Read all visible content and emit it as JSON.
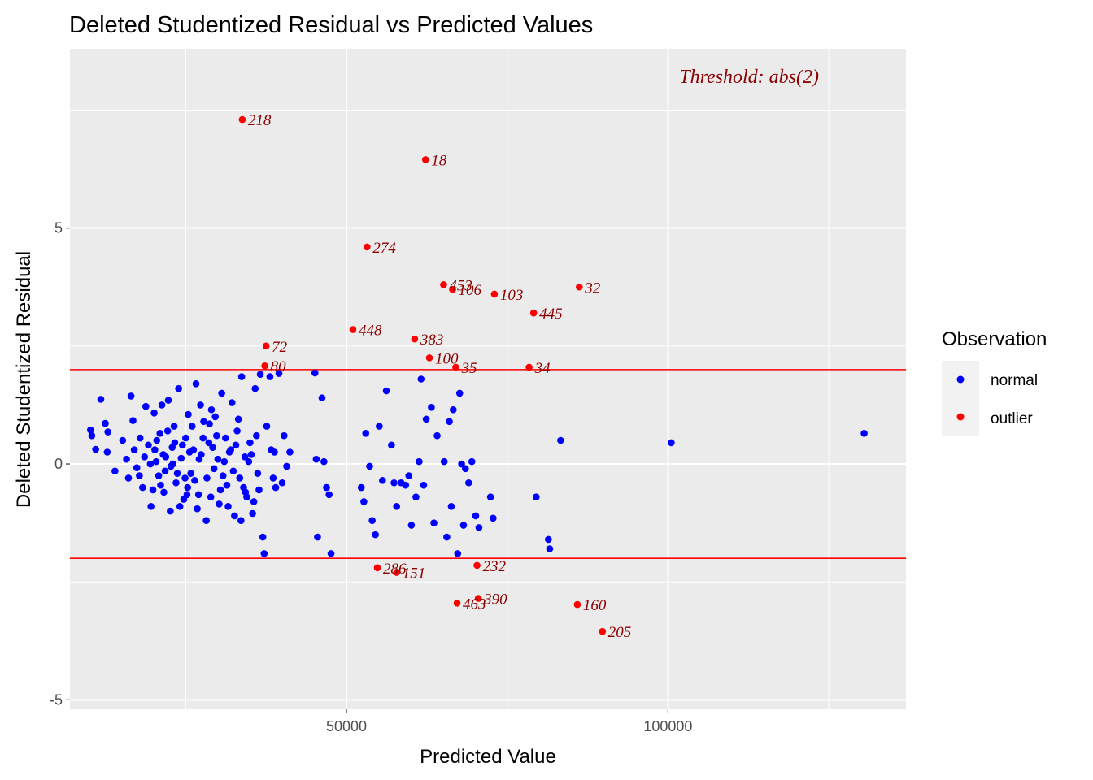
{
  "chart_data": {
    "type": "scatter",
    "title": "Deleted Studentized Residual vs Predicted Values",
    "xlabel": "Predicted Value",
    "ylabel": "Deleted Studentized Residual",
    "xlim": [
      7000,
      137000
    ],
    "ylim": [
      -5.2,
      8.8
    ],
    "x_ticks": [
      50000,
      100000
    ],
    "x_tick_labels": [
      "50000",
      "100000"
    ],
    "x_minor": [
      25000,
      75000,
      125000
    ],
    "y_ticks": [
      -5,
      0,
      5
    ],
    "y_tick_labels": [
      "-5",
      "0",
      "5"
    ],
    "y_minor": [
      -2.5,
      2.5,
      7.5
    ],
    "thresholds": [
      2,
      -2
    ],
    "annotation": "Threshold: abs(2)",
    "grid": true,
    "legend_position": "right",
    "legend": {
      "title": "Observation",
      "items": [
        {
          "label": "normal",
          "color": "#0000ff"
        },
        {
          "label": "outlier",
          "color": "#ff0000"
        }
      ]
    },
    "colors": {
      "normal": "#0000ff",
      "outlier": "#ff0000",
      "threshold": "#ff0000",
      "label": "#8b0000",
      "panel": "#ebebeb",
      "grid": "#ffffff"
    },
    "outliers": [
      {
        "x": 33800,
        "y": 7.3,
        "label": "218"
      },
      {
        "x": 62300,
        "y": 6.45,
        "label": "18"
      },
      {
        "x": 53200,
        "y": 4.6,
        "label": "274"
      },
      {
        "x": 65100,
        "y": 3.8,
        "label": "453"
      },
      {
        "x": 66500,
        "y": 3.7,
        "label": "106"
      },
      {
        "x": 73000,
        "y": 3.6,
        "label": "103"
      },
      {
        "x": 86200,
        "y": 3.75,
        "label": "32"
      },
      {
        "x": 79100,
        "y": 3.2,
        "label": "445"
      },
      {
        "x": 51000,
        "y": 2.85,
        "label": "448"
      },
      {
        "x": 60600,
        "y": 2.65,
        "label": "383"
      },
      {
        "x": 37500,
        "y": 2.5,
        "label": "72"
      },
      {
        "x": 62900,
        "y": 2.25,
        "label": "100"
      },
      {
        "x": 67000,
        "y": 2.05,
        "label": "35"
      },
      {
        "x": 78400,
        "y": 2.05,
        "label": "34"
      },
      {
        "x": 37300,
        "y": 2.08,
        "label": "80"
      },
      {
        "x": 54800,
        "y": -2.2,
        "label": "286"
      },
      {
        "x": 57800,
        "y": -2.3,
        "label": "151"
      },
      {
        "x": 70300,
        "y": -2.15,
        "label": "232"
      },
      {
        "x": 70500,
        "y": -2.85,
        "label": "390"
      },
      {
        "x": 67200,
        "y": -2.95,
        "label": "463"
      },
      {
        "x": 85900,
        "y": -2.98,
        "label": "160"
      },
      {
        "x": 89800,
        "y": -3.55,
        "label": "205"
      }
    ],
    "normal_points": [
      [
        10200,
        0.72
      ],
      [
        10400,
        0.6
      ],
      [
        11000,
        0.31
      ],
      [
        11800,
        1.37
      ],
      [
        12500,
        0.86
      ],
      [
        12800,
        0.25
      ],
      [
        12900,
        0.68
      ],
      [
        14000,
        -0.15
      ],
      [
        15200,
        0.5
      ],
      [
        15800,
        0.1
      ],
      [
        16100,
        -0.3
      ],
      [
        16500,
        1.44
      ],
      [
        16800,
        0.92
      ],
      [
        17000,
        0.3
      ],
      [
        17400,
        -0.08
      ],
      [
        17900,
        0.55
      ],
      [
        18300,
        -0.5
      ],
      [
        18800,
        1.22
      ],
      [
        19200,
        0.4
      ],
      [
        19600,
        -0.9
      ],
      [
        20100,
        1.08
      ],
      [
        20400,
        0.05
      ],
      [
        20800,
        -0.25
      ],
      [
        21000,
        0.65
      ],
      [
        21300,
        1.25
      ],
      [
        21600,
        -0.6
      ],
      [
        21900,
        0.15
      ],
      [
        22300,
        1.35
      ],
      [
        22600,
        -1.0
      ],
      [
        22900,
        0.35
      ],
      [
        23200,
        0.8
      ],
      [
        23500,
        -0.4
      ],
      [
        23900,
        1.6
      ],
      [
        24300,
        0.12
      ],
      [
        24700,
        -0.75
      ],
      [
        25000,
        0.55
      ],
      [
        25400,
        1.05
      ],
      [
        25800,
        -0.2
      ],
      [
        26200,
        0.3
      ],
      [
        26600,
        1.7
      ],
      [
        27000,
        -0.65
      ],
      [
        27400,
        0.2
      ],
      [
        27800,
        0.9
      ],
      [
        28200,
        -1.2
      ],
      [
        28600,
        0.45
      ],
      [
        29000,
        1.15
      ],
      [
        29400,
        -0.1
      ],
      [
        29800,
        0.6
      ],
      [
        30200,
        -0.85
      ],
      [
        30600,
        1.5
      ],
      [
        31000,
        0.05
      ],
      [
        31400,
        -0.45
      ],
      [
        31800,
        0.25
      ],
      [
        32200,
        1.3
      ],
      [
        32600,
        -1.1
      ],
      [
        33000,
        0.7
      ],
      [
        33400,
        -0.3
      ],
      [
        33700,
        1.85
      ],
      [
        34200,
        0.15
      ],
      [
        34500,
        -0.7
      ],
      [
        35000,
        0.45
      ],
      [
        35400,
        -1.05
      ],
      [
        35800,
        1.6
      ],
      [
        36200,
        -0.2
      ],
      [
        36600,
        1.9
      ],
      [
        37000,
        -1.55
      ],
      [
        37200,
        -1.9
      ],
      [
        38100,
        1.85
      ],
      [
        38300,
        0.3
      ],
      [
        38600,
        -0.3
      ],
      [
        39000,
        -0.5
      ],
      [
        39500,
        1.92
      ],
      [
        40000,
        -0.4
      ],
      [
        40300,
        0.6
      ],
      [
        40700,
        -0.05
      ],
      [
        41200,
        0.25
      ],
      [
        45100,
        1.93
      ],
      [
        45300,
        0.1
      ],
      [
        45500,
        -1.55
      ],
      [
        46200,
        1.4
      ],
      [
        46500,
        0.05
      ],
      [
        46900,
        -0.5
      ],
      [
        47300,
        -0.65
      ],
      [
        47600,
        -1.9
      ],
      [
        52300,
        -0.5
      ],
      [
        52700,
        -0.8
      ],
      [
        53000,
        0.65
      ],
      [
        53600,
        -0.05
      ],
      [
        54000,
        -1.2
      ],
      [
        54500,
        -1.5
      ],
      [
        55100,
        0.8
      ],
      [
        55600,
        -0.35
      ],
      [
        56200,
        1.55
      ],
      [
        57000,
        0.4
      ],
      [
        57400,
        -0.4
      ],
      [
        57800,
        -0.9
      ],
      [
        58500,
        -0.4
      ],
      [
        59200,
        -0.45
      ],
      [
        59700,
        -0.25
      ],
      [
        60100,
        -1.3
      ],
      [
        60800,
        -0.7
      ],
      [
        61300,
        0.05
      ],
      [
        61600,
        1.8
      ],
      [
        62000,
        -0.45
      ],
      [
        62400,
        0.95
      ],
      [
        63200,
        1.2
      ],
      [
        63600,
        -1.25
      ],
      [
        64100,
        0.6
      ],
      [
        65200,
        0.05
      ],
      [
        65600,
        -1.55
      ],
      [
        66000,
        0.9
      ],
      [
        66300,
        -0.9
      ],
      [
        66600,
        1.15
      ],
      [
        67300,
        -1.9
      ],
      [
        67600,
        1.5
      ],
      [
        67900,
        0.0
      ],
      [
        68200,
        -1.3
      ],
      [
        68500,
        -0.1
      ],
      [
        69000,
        -0.4
      ],
      [
        69500,
        0.05
      ],
      [
        70100,
        -1.1
      ],
      [
        70600,
        -1.35
      ],
      [
        72400,
        -0.7
      ],
      [
        72800,
        -1.15
      ],
      [
        79500,
        -0.7
      ],
      [
        81400,
        -1.6
      ],
      [
        81600,
        -1.8
      ],
      [
        83300,
        0.5
      ],
      [
        100500,
        0.45
      ],
      [
        130500,
        0.65
      ],
      [
        20500,
        0.5
      ],
      [
        21500,
        0.2
      ],
      [
        22200,
        0.7
      ],
      [
        23000,
        0.0
      ],
      [
        23700,
        -0.2
      ],
      [
        24500,
        0.4
      ],
      [
        25300,
        -0.5
      ],
      [
        26000,
        0.8
      ],
      [
        27100,
        0.1
      ],
      [
        28300,
        -0.3
      ],
      [
        29200,
        0.35
      ],
      [
        30400,
        -0.55
      ],
      [
        31200,
        0.55
      ],
      [
        32400,
        -0.15
      ],
      [
        33200,
        0.95
      ],
      [
        34300,
        -0.6
      ],
      [
        35200,
        0.2
      ],
      [
        19500,
        0.0
      ],
      [
        18600,
        0.15
      ],
      [
        17800,
        -0.25
      ],
      [
        26800,
        -0.95
      ],
      [
        27700,
        0.55
      ],
      [
        28900,
        -0.7
      ],
      [
        30000,
        0.1
      ],
      [
        31600,
        -0.9
      ],
      [
        32800,
        0.4
      ],
      [
        34000,
        -0.5
      ],
      [
        35600,
        -0.8
      ],
      [
        24100,
        -0.9
      ],
      [
        25600,
        0.25
      ],
      [
        29600,
        1.0
      ],
      [
        33600,
        -1.2
      ],
      [
        36000,
        0.6
      ],
      [
        21100,
        -0.45
      ],
      [
        22700,
        -0.05
      ],
      [
        23300,
        0.45
      ],
      [
        24900,
        -0.3
      ],
      [
        26400,
        -0.35
      ],
      [
        27300,
        1.25
      ],
      [
        28700,
        0.85
      ],
      [
        30800,
        -0.25
      ],
      [
        32000,
        0.3
      ],
      [
        34800,
        0.05
      ],
      [
        36400,
        -0.55
      ],
      [
        37600,
        0.8
      ],
      [
        38800,
        0.25
      ],
      [
        19900,
        -0.55
      ],
      [
        20200,
        0.3
      ],
      [
        21800,
        -0.15
      ],
      [
        25200,
        -0.65
      ]
    ]
  }
}
